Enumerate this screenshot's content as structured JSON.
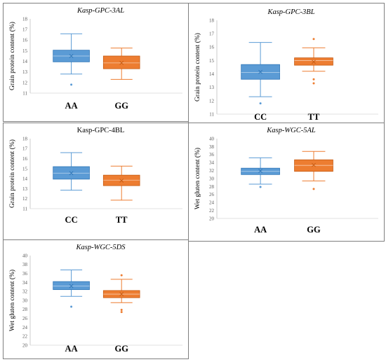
{
  "colors": {
    "blue": "#5b9bd5",
    "blue_edge": "#2e75b6",
    "orange": "#ed7d31",
    "orange_edge": "#c55a11"
  },
  "chart_data": [
    {
      "type": "box",
      "title": "Kasp-GPC-3AL",
      "title_italic": true,
      "ylabel": "Grain protein content (%)",
      "ylim": [
        11,
        18
      ],
      "yticks": [
        11,
        12,
        13,
        14,
        15,
        16,
        17,
        18
      ],
      "categories": [
        "AA",
        "GG"
      ],
      "boxes": [
        {
          "min": 12.8,
          "q1": 13.95,
          "median": 14.5,
          "mean": 14.5,
          "q3": 15.05,
          "max": 16.6,
          "outliers": [
            11.8
          ]
        },
        {
          "min": 12.3,
          "q1": 13.3,
          "median": 13.85,
          "mean": 13.85,
          "q3": 14.5,
          "max": 15.25,
          "outliers": []
        }
      ]
    },
    {
      "type": "box",
      "title": "Kasp-GPC-3BL",
      "title_italic": true,
      "ylabel": "Grain protein content (%)",
      "ylim": [
        11,
        18
      ],
      "yticks": [
        11,
        12,
        13,
        14,
        15,
        16,
        17,
        18
      ],
      "categories": [
        "CC",
        "TT"
      ],
      "boxes": [
        {
          "min": 12.3,
          "q1": 13.6,
          "median": 14.1,
          "mean": 14.15,
          "q3": 14.7,
          "max": 16.35,
          "outliers": [
            11.8
          ]
        },
        {
          "min": 14.2,
          "q1": 14.65,
          "median": 15.0,
          "mean": 14.9,
          "q3": 15.2,
          "max": 15.95,
          "outliers": [
            16.6,
            13.6,
            13.3
          ]
        }
      ]
    },
    {
      "type": "box",
      "title": "Kasp-GPC-4BL",
      "title_italic": false,
      "ylabel": "Grain protein content (%)",
      "ylim": [
        11,
        18
      ],
      "yticks": [
        11,
        12,
        13,
        14,
        15,
        16,
        17,
        18
      ],
      "categories": [
        "CC",
        "TT"
      ],
      "boxes": [
        {
          "min": 12.85,
          "q1": 13.95,
          "median": 14.55,
          "mean": 14.55,
          "q3": 15.2,
          "max": 16.6,
          "outliers": []
        },
        {
          "min": 11.85,
          "q1": 13.3,
          "median": 13.85,
          "mean": 13.8,
          "q3": 14.35,
          "max": 15.25,
          "outliers": []
        }
      ]
    },
    {
      "type": "box",
      "title": "Kasp-WGC-5AL",
      "title_italic": true,
      "ylabel": "Wet gluten content (%)",
      "ylim": [
        20,
        40
      ],
      "yticks": [
        20,
        22,
        24,
        26,
        28,
        30,
        32,
        34,
        36,
        38,
        40
      ],
      "categories": [
        "AA",
        "GG"
      ],
      "boxes": [
        {
          "min": 28.6,
          "q1": 31.0,
          "median": 31.8,
          "mean": 31.9,
          "q3": 32.6,
          "max": 35.2,
          "outliers": [
            27.9
          ]
        },
        {
          "min": 29.4,
          "q1": 31.8,
          "median": 33.3,
          "mean": 33.4,
          "q3": 34.7,
          "max": 36.8,
          "outliers": [
            27.4
          ]
        }
      ]
    },
    {
      "type": "box",
      "title": "Kasp-WGC-5DS",
      "title_italic": true,
      "ylabel": "Wet gluten content (%)",
      "ylim": [
        20,
        40
      ],
      "yticks": [
        20,
        22,
        24,
        26,
        28,
        30,
        32,
        34,
        36,
        38,
        40
      ],
      "categories": [
        "AA",
        "GG"
      ],
      "boxes": [
        {
          "min": 30.9,
          "q1": 32.4,
          "median": 33.2,
          "mean": 33.2,
          "q3": 34.2,
          "max": 36.8,
          "outliers": [
            28.6
          ]
        },
        {
          "min": 29.5,
          "q1": 30.6,
          "median": 31.4,
          "mean": 31.4,
          "q3": 32.2,
          "max": 34.7,
          "outliers": [
            35.6,
            27.9,
            27.4
          ]
        }
      ]
    }
  ]
}
